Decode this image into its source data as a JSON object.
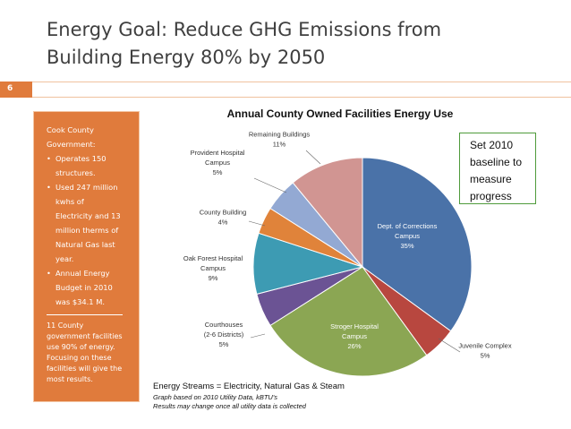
{
  "slide": {
    "title_line1": "Energy Goal: Reduce GHG Emissions from",
    "title_line2": "Building Energy 80% by 2050",
    "number": "6",
    "accent_color": "#e07b3c"
  },
  "side_panel": {
    "intro_line1": "Cook County",
    "intro_line2": "Government:",
    "bullets": [
      [
        "Operates 150",
        "structures."
      ],
      [
        "Used 247 million",
        "kwhs of",
        "Electricity and 13",
        "million therms of",
        "Natural Gas last",
        "year."
      ],
      [
        "Annual Energy",
        "Budget in 2010",
        "was $34.1 M."
      ]
    ],
    "note_lines": [
      "11 County",
      "government facilities",
      "use 90% of energy.",
      "Focusing on these",
      "facilities will give the",
      "most results."
    ]
  },
  "callout": {
    "lines": [
      "Set 2010",
      "baseline to",
      "measure",
      "progress"
    ]
  },
  "footer": {
    "streams": "Energy Streams = Electricity, Natural Gas & Steam",
    "note1": "Graph based on 2010 Utility Data, kBTU's",
    "note2": "Results may change once all utility data is collected"
  },
  "chart_data": {
    "type": "pie",
    "title": "Annual County Owned Facilities Energy Use",
    "slices": [
      {
        "label_lines": [
          "Dept. of Corrections",
          "Campus"
        ],
        "pct_label": "35%",
        "value": 35,
        "color": "#4a72a8"
      },
      {
        "label_lines": [
          "Juvenile Complex"
        ],
        "pct_label": "5%",
        "value": 5,
        "color": "#b8473f"
      },
      {
        "label_lines": [
          "Stroger Hospital",
          "Campus"
        ],
        "pct_label": "26%",
        "value": 26,
        "color": "#8ba653"
      },
      {
        "label_lines": [
          "Courthouses",
          "(2-6 Districts)"
        ],
        "pct_label": "5%",
        "value": 5,
        "color": "#6b5394"
      },
      {
        "label_lines": [
          "Oak Forest Hospital",
          "Campus"
        ],
        "pct_label": "9%",
        "value": 9,
        "color": "#3d9bb3"
      },
      {
        "label_lines": [
          "County Building"
        ],
        "pct_label": "4%",
        "value": 4,
        "color": "#e0833a"
      },
      {
        "label_lines": [
          "Provident Hospital",
          "Campus"
        ],
        "pct_label": "5%",
        "value": 5,
        "color": "#93a9d3"
      },
      {
        "label_lines": [
          "Remaining Buildings"
        ],
        "pct_label": "11%",
        "value": 11,
        "color": "#d19592"
      }
    ]
  }
}
